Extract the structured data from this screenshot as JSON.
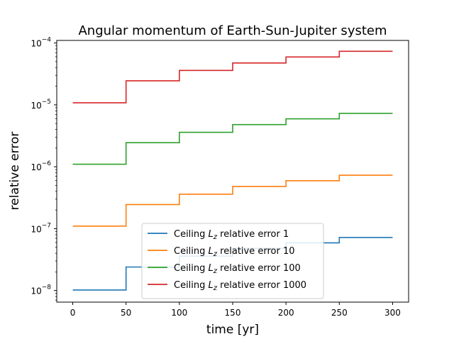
{
  "chart_data": {
    "type": "line",
    "title": "Angular momentum of Earth-Sun-Jupiter system",
    "xlabel": "time [yr]",
    "ylabel": "relative error",
    "xlim": [
      -15,
      315
    ],
    "ylim": [
      6.5e-09,
      0.00011
    ],
    "yscale": "log",
    "grid": false,
    "legend_position": "lower-center",
    "x_ticks": [
      0,
      50,
      100,
      150,
      200,
      250,
      300
    ],
    "y_ticks": [
      {
        "value": 1e-08,
        "base": "10",
        "exp": "−8"
      },
      {
        "value": 1e-07,
        "base": "10",
        "exp": "−7"
      },
      {
        "value": 1e-06,
        "base": "10",
        "exp": "−6"
      },
      {
        "value": 1e-05,
        "base": "10",
        "exp": "−5"
      },
      {
        "value": 0.0001,
        "base": "10",
        "exp": "−4"
      }
    ],
    "step_edges": [
      0,
      50,
      100,
      150,
      200,
      250,
      300
    ],
    "series": [
      {
        "label_prefix": "Ceiling",
        "label_var": "L",
        "label_sub": "z",
        "label_suffix": "relative error 1",
        "color": "#1f77b4",
        "values": [
          1.02e-08,
          2.4e-08,
          3.6e-08,
          4.8e-08,
          5.9e-08,
          7.2e-08
        ]
      },
      {
        "label_prefix": "Ceiling",
        "label_var": "L",
        "label_sub": "z",
        "label_suffix": "relative error 10",
        "color": "#ff7f0e",
        "values": [
          1.1e-07,
          2.45e-07,
          3.6e-07,
          4.8e-07,
          5.95e-07,
          7.3e-07
        ]
      },
      {
        "label_prefix": "Ceiling",
        "label_var": "L",
        "label_sub": "z",
        "label_suffix": "relative error 100",
        "color": "#2ca02c",
        "values": [
          1.1e-06,
          2.45e-06,
          3.6e-06,
          4.8e-06,
          5.95e-06,
          7.3e-06
        ]
      },
      {
        "label_prefix": "Ceiling",
        "label_var": "L",
        "label_sub": "z",
        "label_suffix": "relative error 1000",
        "color": "#d62728",
        "values": [
          1.08e-05,
          2.45e-05,
          3.6e-05,
          4.75e-05,
          5.95e-05,
          7.35e-05
        ]
      }
    ]
  }
}
